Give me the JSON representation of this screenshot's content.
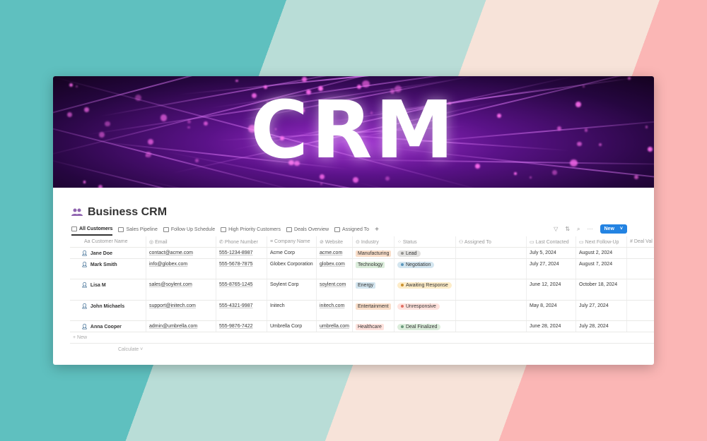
{
  "banner": {
    "text": "CRM"
  },
  "page": {
    "title": "Business CRM",
    "icon": "people-icon"
  },
  "tabs": [
    {
      "label": "All Customers",
      "active": true
    },
    {
      "label": "Sales Pipeline"
    },
    {
      "label": "Follow Up Schedule"
    },
    {
      "label": "High Priority Customers"
    },
    {
      "label": "Deals Overview"
    },
    {
      "label": "Assigned To"
    }
  ],
  "toolbar": {
    "new_label": "New",
    "accent": "#2383e2"
  },
  "columns": [
    "Customer Name",
    "Email",
    "Phone Number",
    "Company Name",
    "Website",
    "Industry",
    "Status",
    "Assigned To",
    "Last Contacted",
    "Next Follow-Up",
    "Deal Val"
  ],
  "rows": [
    {
      "name": "Jane Doe",
      "email": "contact@acme.com",
      "phone": "555-1234-8987",
      "company": "Acme Corp",
      "website": "acme.com",
      "industry": "Manufacturing",
      "industry_color": "#fadec9",
      "status": "Lead",
      "status_bg": "#e3e2e0",
      "status_dot": "#91918e",
      "last": "July 5, 2024",
      "next": "August 2, 2024"
    },
    {
      "name": "Mark Smith",
      "email": "info@globex.com",
      "phone": "555-5678-7875",
      "company": "Globex Corporation",
      "website": "globex.com",
      "industry": "Technology",
      "industry_color": "#dbeddb",
      "status": "Negotiation",
      "status_bg": "#d3e5ef",
      "status_dot": "#5b97bd",
      "last": "July 27, 2024",
      "next": "August 7, 2024"
    },
    {
      "name": "Lisa M",
      "email": "sales@soylent.com",
      "phone": "555-8765-1245",
      "company": "Soylent Corp",
      "website": "soylent.com",
      "industry": "Energy",
      "industry_color": "#d3e5ef",
      "status": "Awaiting Response",
      "status_bg": "#fdecc8",
      "status_dot": "#cb912f",
      "last": "June 12, 2024",
      "next": "October 18, 2024"
    },
    {
      "name": "John Michaels",
      "email": "support@initech.com",
      "phone": "555-4321-9987",
      "company": "Initech",
      "website": "initech.com",
      "industry": "Entertainment",
      "industry_color": "#fadec9",
      "status": "Unresponsive",
      "status_bg": "#ffe2dd",
      "status_dot": "#e16f64",
      "last": "May 8, 2024",
      "next": "July 27, 2024"
    },
    {
      "name": "Anna Cooper",
      "email": "admin@umbrella.com",
      "phone": "555-9876-7422",
      "company": "Umbrella Corp",
      "website": "umbrella.com",
      "industry": "Healthcare",
      "industry_color": "#ffe2dd",
      "status": "Deal Finalized",
      "status_bg": "#dbeddb",
      "status_dot": "#6c9b7d",
      "last": "June 28, 2024",
      "next": "July 28, 2024"
    }
  ],
  "footer": {
    "new_row": "+ New",
    "calculate": "Calculate ˅"
  }
}
